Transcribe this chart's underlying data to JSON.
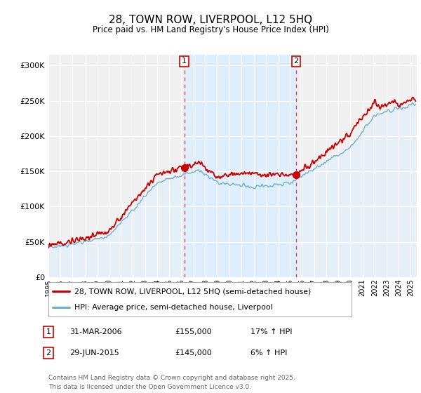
{
  "title": "28, TOWN ROW, LIVERPOOL, L12 5HQ",
  "subtitle": "Price paid vs. HM Land Registry's House Price Index (HPI)",
  "ytick_values": [
    0,
    50000,
    100000,
    150000,
    200000,
    250000,
    300000
  ],
  "ylim": [
    0,
    315000
  ],
  "xlim_start": 1995,
  "xlim_end": 2025.5,
  "hpi_color": "#6baed6",
  "hpi_fill_color": "#ddeeff",
  "shade_fill_color": "#ddeeff",
  "price_color": "#cc0000",
  "marker1_x": 2006.25,
  "marker1_y": 155000,
  "marker2_x": 2015.5,
  "marker2_y": 145000,
  "vline1_x": 2006.25,
  "vline2_x": 2015.5,
  "legend_line1": "28, TOWN ROW, LIVERPOOL, L12 5HQ (semi-detached house)",
  "legend_line2": "HPI: Average price, semi-detached house, Liverpool",
  "table_row1_num": "1",
  "table_row1_date": "31-MAR-2006",
  "table_row1_price": "£155,000",
  "table_row1_hpi": "17% ↑ HPI",
  "table_row2_num": "2",
  "table_row2_date": "29-JUN-2015",
  "table_row2_price": "£145,000",
  "table_row2_hpi": "6% ↑ HPI",
  "footnote": "Contains HM Land Registry data © Crown copyright and database right 2025.\nThis data is licensed under the Open Government Licence v3.0.",
  "bg_color": "#ffffff",
  "plot_bg_color": "#f0f0f0"
}
